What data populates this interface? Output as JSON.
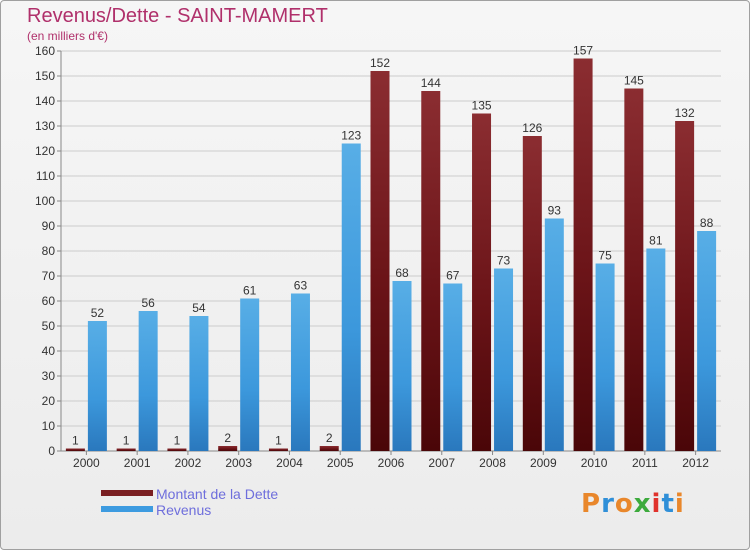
{
  "title": "Revenus/Dette - SAINT-MAMERT",
  "subtitle": "(en milliers d'€)",
  "logo": {
    "text": "Proxiti",
    "letter_colors": [
      "#e9872b",
      "#2f8fd8",
      "#e9872b",
      "#3caa3c",
      "#e0322c",
      "#2f8fd8",
      "#e9872b"
    ]
  },
  "colors": {
    "background": "#f0f0f0",
    "title": "#b0306b",
    "legend_text": "#6e6edc",
    "grid": "#cccccc"
  },
  "chart_data": {
    "type": "bar",
    "categories": [
      "2000",
      "2001",
      "2002",
      "2003",
      "2004",
      "2005",
      "2006",
      "2007",
      "2008",
      "2009",
      "2010",
      "2011",
      "2012"
    ],
    "series": [
      {
        "name": "Montant de la Dette",
        "color": "#7a1f22",
        "values": [
          1,
          1,
          1,
          2,
          1,
          2,
          152,
          144,
          135,
          126,
          157,
          145,
          132
        ]
      },
      {
        "name": "Revenus",
        "color": "#3d9be0",
        "values": [
          52,
          56,
          54,
          61,
          63,
          123,
          68,
          67,
          73,
          93,
          75,
          81,
          88
        ]
      }
    ],
    "ylim": [
      0,
      160
    ],
    "yticks": [
      "0",
      "10",
      "20",
      "30",
      "40",
      "50",
      "60",
      "70",
      "80",
      "90",
      "100",
      "110",
      "120",
      "130",
      "140",
      "150",
      "160"
    ],
    "grid": true,
    "legend_position": "bottom-left"
  }
}
